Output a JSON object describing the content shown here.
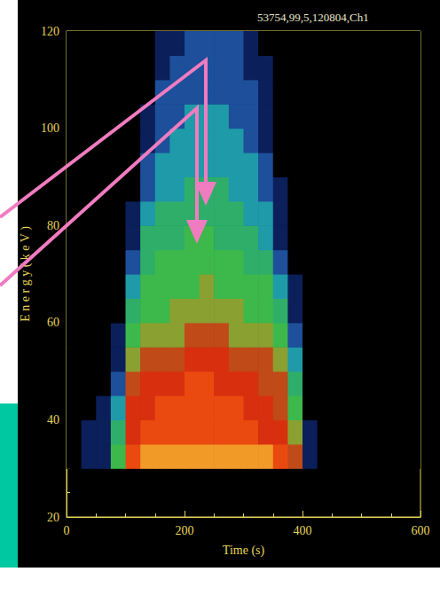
{
  "chart_data": {
    "type": "heatmap",
    "title": "53754,99,5,120804,Ch1",
    "x_label": "Time (s)",
    "y_label": "E n e r g y ( k e V )",
    "xlim": [
      0,
      600
    ],
    "xticks": [
      0,
      200,
      400,
      600
    ],
    "ylim": [
      20,
      120
    ],
    "yticks": [
      20,
      40,
      60,
      80,
      100,
      120
    ],
    "grid": false,
    "x_bins": [
      0,
      25,
      50,
      75,
      100,
      125,
      150,
      175,
      200,
      225,
      250,
      275,
      300,
      325,
      350,
      375,
      400,
      425,
      450,
      475,
      500,
      525,
      550,
      575,
      600
    ],
    "y_bins": [
      30,
      35,
      40,
      45,
      50,
      55,
      60,
      65,
      70,
      75,
      80,
      85,
      90,
      95,
      100,
      105,
      110,
      115,
      120
    ],
    "value_range": [
      0,
      10
    ],
    "cells": [
      [
        0,
        1,
        1,
        5,
        9,
        10,
        10,
        10,
        10,
        10,
        10,
        10,
        10,
        10,
        9,
        7,
        1,
        0,
        0,
        0,
        0,
        0,
        0,
        0
      ],
      [
        0,
        1,
        1,
        4,
        8,
        9,
        9,
        9,
        9,
        9,
        9,
        9,
        9,
        8,
        8,
        6,
        1,
        0,
        0,
        0,
        0,
        0,
        0,
        0
      ],
      [
        0,
        0,
        1,
        3,
        8,
        8,
        9,
        9,
        9,
        9,
        9,
        9,
        8,
        8,
        7,
        5,
        0,
        0,
        0,
        0,
        0,
        0,
        0,
        0
      ],
      [
        0,
        0,
        0,
        2,
        7,
        8,
        8,
        8,
        9,
        9,
        8,
        8,
        8,
        7,
        7,
        4,
        0,
        0,
        0,
        0,
        0,
        0,
        0,
        0
      ],
      [
        0,
        0,
        0,
        1,
        6,
        7,
        7,
        7,
        8,
        8,
        8,
        7,
        7,
        7,
        6,
        3,
        0,
        0,
        0,
        0,
        0,
        0,
        0,
        0
      ],
      [
        0,
        0,
        0,
        1,
        5,
        6,
        6,
        6,
        7,
        7,
        7,
        6,
        6,
        6,
        5,
        2,
        0,
        0,
        0,
        0,
        0,
        0,
        0,
        0
      ],
      [
        0,
        0,
        0,
        0,
        4,
        5,
        5,
        6,
        6,
        6,
        6,
        6,
        5,
        5,
        4,
        1,
        0,
        0,
        0,
        0,
        0,
        0,
        0,
        0
      ],
      [
        0,
        0,
        0,
        0,
        3,
        5,
        5,
        5,
        5,
        6,
        5,
        5,
        5,
        5,
        3,
        1,
        0,
        0,
        0,
        0,
        0,
        0,
        0,
        0
      ],
      [
        0,
        0,
        0,
        0,
        2,
        4,
        5,
        5,
        5,
        5,
        5,
        5,
        4,
        4,
        2,
        0,
        0,
        0,
        0,
        0,
        0,
        0,
        0,
        0
      ],
      [
        0,
        0,
        0,
        0,
        1,
        4,
        4,
        4,
        5,
        5,
        4,
        4,
        4,
        3,
        1,
        0,
        0,
        0,
        0,
        0,
        0,
        0,
        0,
        0
      ],
      [
        0,
        0,
        0,
        0,
        1,
        3,
        4,
        4,
        4,
        4,
        4,
        4,
        3,
        3,
        1,
        0,
        0,
        0,
        0,
        0,
        0,
        0,
        0,
        0
      ],
      [
        0,
        0,
        0,
        0,
        0,
        2,
        3,
        3,
        4,
        4,
        4,
        3,
        3,
        2,
        1,
        0,
        0,
        0,
        0,
        0,
        0,
        0,
        0,
        0
      ],
      [
        0,
        0,
        0,
        0,
        0,
        2,
        3,
        3,
        3,
        3,
        3,
        3,
        3,
        2,
        0,
        0,
        0,
        0,
        0,
        0,
        0,
        0,
        0,
        0
      ],
      [
        0,
        0,
        0,
        0,
        0,
        1,
        2,
        3,
        3,
        3,
        3,
        3,
        2,
        1,
        0,
        0,
        0,
        0,
        0,
        0,
        0,
        0,
        0,
        0
      ],
      [
        0,
        0,
        0,
        0,
        0,
        1,
        2,
        2,
        3,
        3,
        3,
        2,
        2,
        1,
        0,
        0,
        0,
        0,
        0,
        0,
        0,
        0,
        0,
        0
      ],
      [
        0,
        0,
        0,
        0,
        0,
        0,
        2,
        2,
        2,
        2,
        2,
        2,
        2,
        1,
        0,
        0,
        0,
        0,
        0,
        0,
        0,
        0,
        0,
        0
      ],
      [
        0,
        0,
        0,
        0,
        0,
        0,
        1,
        2,
        2,
        2,
        2,
        2,
        1,
        1,
        0,
        0,
        0,
        0,
        0,
        0,
        0,
        0,
        0,
        0
      ],
      [
        0,
        0,
        0,
        0,
        0,
        0,
        1,
        1,
        2,
        2,
        2,
        2,
        1,
        0,
        0,
        0,
        0,
        0,
        0,
        0,
        0,
        0,
        0,
        0
      ]
    ]
  }
}
